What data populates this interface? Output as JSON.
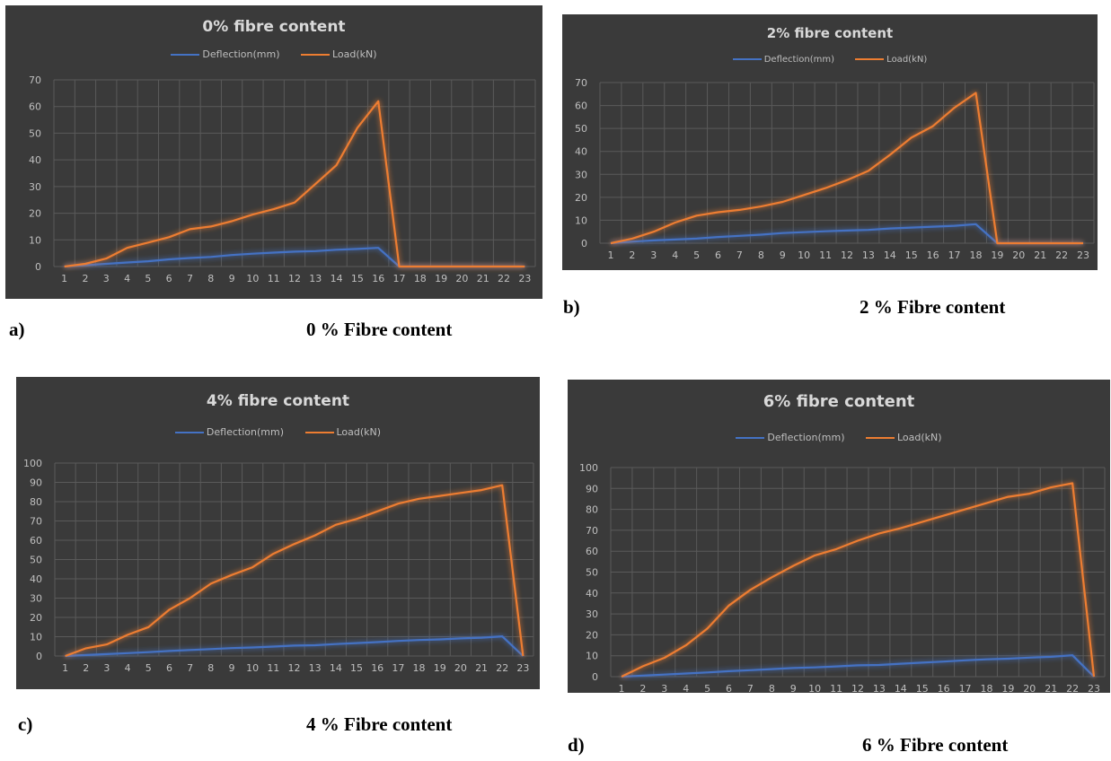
{
  "colors": {
    "panel_bg": "#3a3a3a",
    "grid": "#5a5a5a",
    "tick": "#bfbfbf",
    "deflection": "#4472c4",
    "load": "#ed7d31"
  },
  "captions": [
    {
      "letter": "a)",
      "text": "0 % Fibre content"
    },
    {
      "letter": "b)",
      "text": "2 % Fibre content"
    },
    {
      "letter": "c)",
      "text": "4 % Fibre content"
    },
    {
      "letter": "d)",
      "text": "6 % Fibre content"
    }
  ],
  "chart_data": [
    {
      "type": "line",
      "title": "0% fibre content",
      "legend": "top-center",
      "grid": true,
      "x": [
        1,
        2,
        3,
        4,
        5,
        6,
        7,
        8,
        9,
        10,
        11,
        12,
        13,
        14,
        15,
        16,
        17,
        18,
        19,
        20,
        21,
        22,
        23
      ],
      "ylim": [
        0,
        70
      ],
      "yticks": [
        0,
        10,
        20,
        30,
        40,
        50,
        60,
        70
      ],
      "series": [
        {
          "name": "Deflection(mm)",
          "values": [
            0,
            0.5,
            1,
            1.5,
            2,
            2.7,
            3.2,
            3.6,
            4.3,
            4.8,
            5.2,
            5.6,
            5.8,
            6.3,
            6.6,
            7,
            0,
            0,
            0,
            0,
            0,
            0,
            0
          ]
        },
        {
          "name": "Load(kN)",
          "values": [
            0,
            1,
            3,
            7,
            9,
            11,
            14,
            15,
            17,
            19.5,
            21.5,
            24,
            31,
            38,
            52,
            62,
            0,
            0,
            0,
            0,
            0,
            0,
            0
          ]
        }
      ]
    },
    {
      "type": "line",
      "title": "2% fibre content",
      "legend": "top-center",
      "grid": true,
      "x": [
        1,
        2,
        3,
        4,
        5,
        6,
        7,
        8,
        9,
        10,
        11,
        12,
        13,
        14,
        15,
        16,
        17,
        18,
        19,
        20,
        21,
        22,
        23
      ],
      "ylim": [
        0,
        70
      ],
      "yticks": [
        0,
        10,
        20,
        30,
        40,
        50,
        60,
        70
      ],
      "series": [
        {
          "name": "Deflection(mm)",
          "values": [
            0,
            0.7,
            1.2,
            1.6,
            2,
            2.7,
            3.2,
            3.7,
            4.4,
            4.8,
            5.2,
            5.5,
            5.8,
            6.4,
            6.8,
            7.2,
            7.6,
            8.3,
            0,
            0,
            0,
            0,
            0
          ]
        },
        {
          "name": "Load(kN)",
          "values": [
            0,
            2,
            5,
            9,
            12,
            13.5,
            14.5,
            16,
            18,
            21,
            24,
            27.5,
            31.5,
            38.5,
            46,
            51,
            59,
            65.5,
            0,
            0,
            0,
            0,
            0
          ]
        }
      ]
    },
    {
      "type": "line",
      "title": "4% fibre content",
      "legend": "top-center",
      "grid": true,
      "x": [
        1,
        2,
        3,
        4,
        5,
        6,
        7,
        8,
        9,
        10,
        11,
        12,
        13,
        14,
        15,
        16,
        17,
        18,
        19,
        20,
        21,
        22,
        23
      ],
      "ylim": [
        0,
        100
      ],
      "yticks": [
        0,
        10,
        20,
        30,
        40,
        50,
        60,
        70,
        80,
        90,
        100
      ],
      "series": [
        {
          "name": "Deflection(mm)",
          "values": [
            0,
            0.5,
            1,
            1.5,
            2,
            2.6,
            3.1,
            3.6,
            4.1,
            4.4,
            4.9,
            5.4,
            5.6,
            6.2,
            6.7,
            7.2,
            7.8,
            8.3,
            8.6,
            9.1,
            9.5,
            10.2,
            0
          ]
        },
        {
          "name": "Load(kN)",
          "values": [
            0,
            4,
            6,
            11,
            15,
            24,
            30,
            37.5,
            42,
            46,
            53,
            58,
            62.5,
            68,
            71,
            75,
            79,
            81.5,
            83,
            84.5,
            86,
            88.5,
            0
          ]
        }
      ]
    },
    {
      "type": "line",
      "title": "6% fibre content",
      "legend": "top-center",
      "grid": true,
      "x": [
        1,
        2,
        3,
        4,
        5,
        6,
        7,
        8,
        9,
        10,
        11,
        12,
        13,
        14,
        15,
        16,
        17,
        18,
        19,
        20,
        21,
        22,
        23
      ],
      "ylim": [
        0,
        100
      ],
      "yticks": [
        0,
        10,
        20,
        30,
        40,
        50,
        60,
        70,
        80,
        90,
        100
      ],
      "series": [
        {
          "name": "Deflection(mm)",
          "values": [
            0,
            0.5,
            1,
            1.5,
            2,
            2.6,
            3.1,
            3.6,
            4.1,
            4.4,
            4.9,
            5.4,
            5.6,
            6.2,
            6.7,
            7.2,
            7.8,
            8.3,
            8.6,
            9.1,
            9.5,
            10.2,
            0
          ]
        },
        {
          "name": "Load(kN)",
          "values": [
            0,
            5,
            9,
            15,
            23,
            34,
            41.5,
            47.5,
            53,
            58,
            61,
            65,
            68.5,
            71,
            74,
            77,
            80,
            83,
            86,
            87.5,
            90.5,
            92.5,
            0
          ]
        }
      ]
    }
  ]
}
